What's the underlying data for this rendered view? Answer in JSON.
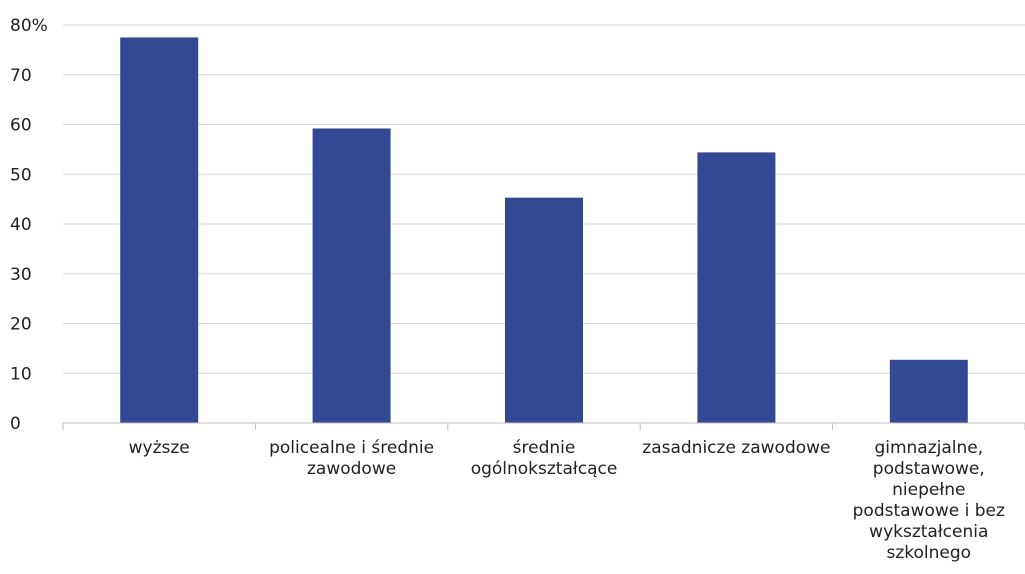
{
  "chart_data": {
    "type": "bar",
    "title": "",
    "xlabel": "",
    "ylabel": "",
    "categories": [
      [
        "wyższe"
      ],
      [
        "policealne i średnie",
        "zawodowe"
      ],
      [
        "średnie",
        "ogólnokształcące"
      ],
      [
        "zasadnicze zawodowe"
      ],
      [
        "gimnazjalne,",
        "podstawowe,",
        "niepełne",
        "podstawowe i bez",
        "wykształcenia",
        "szkolnego"
      ]
    ],
    "values": [
      77.5,
      59.2,
      45.3,
      54.4,
      12.7
    ],
    "ylim": [
      0,
      80
    ],
    "yticks": [
      {
        "value": 0,
        "label": "0"
      },
      {
        "value": 10,
        "label": "10"
      },
      {
        "value": 20,
        "label": "20"
      },
      {
        "value": 30,
        "label": "30"
      },
      {
        "value": 40,
        "label": "40"
      },
      {
        "value": 50,
        "label": "50"
      },
      {
        "value": 60,
        "label": "60"
      },
      {
        "value": 70,
        "label": "70"
      },
      {
        "value": 80,
        "label": "80%"
      }
    ],
    "grid": true,
    "legend": "none",
    "colors": {
      "bar": "#324a94",
      "grid": "#d9d9d9",
      "axis": "#bfbfbf",
      "text": "#222222"
    }
  }
}
